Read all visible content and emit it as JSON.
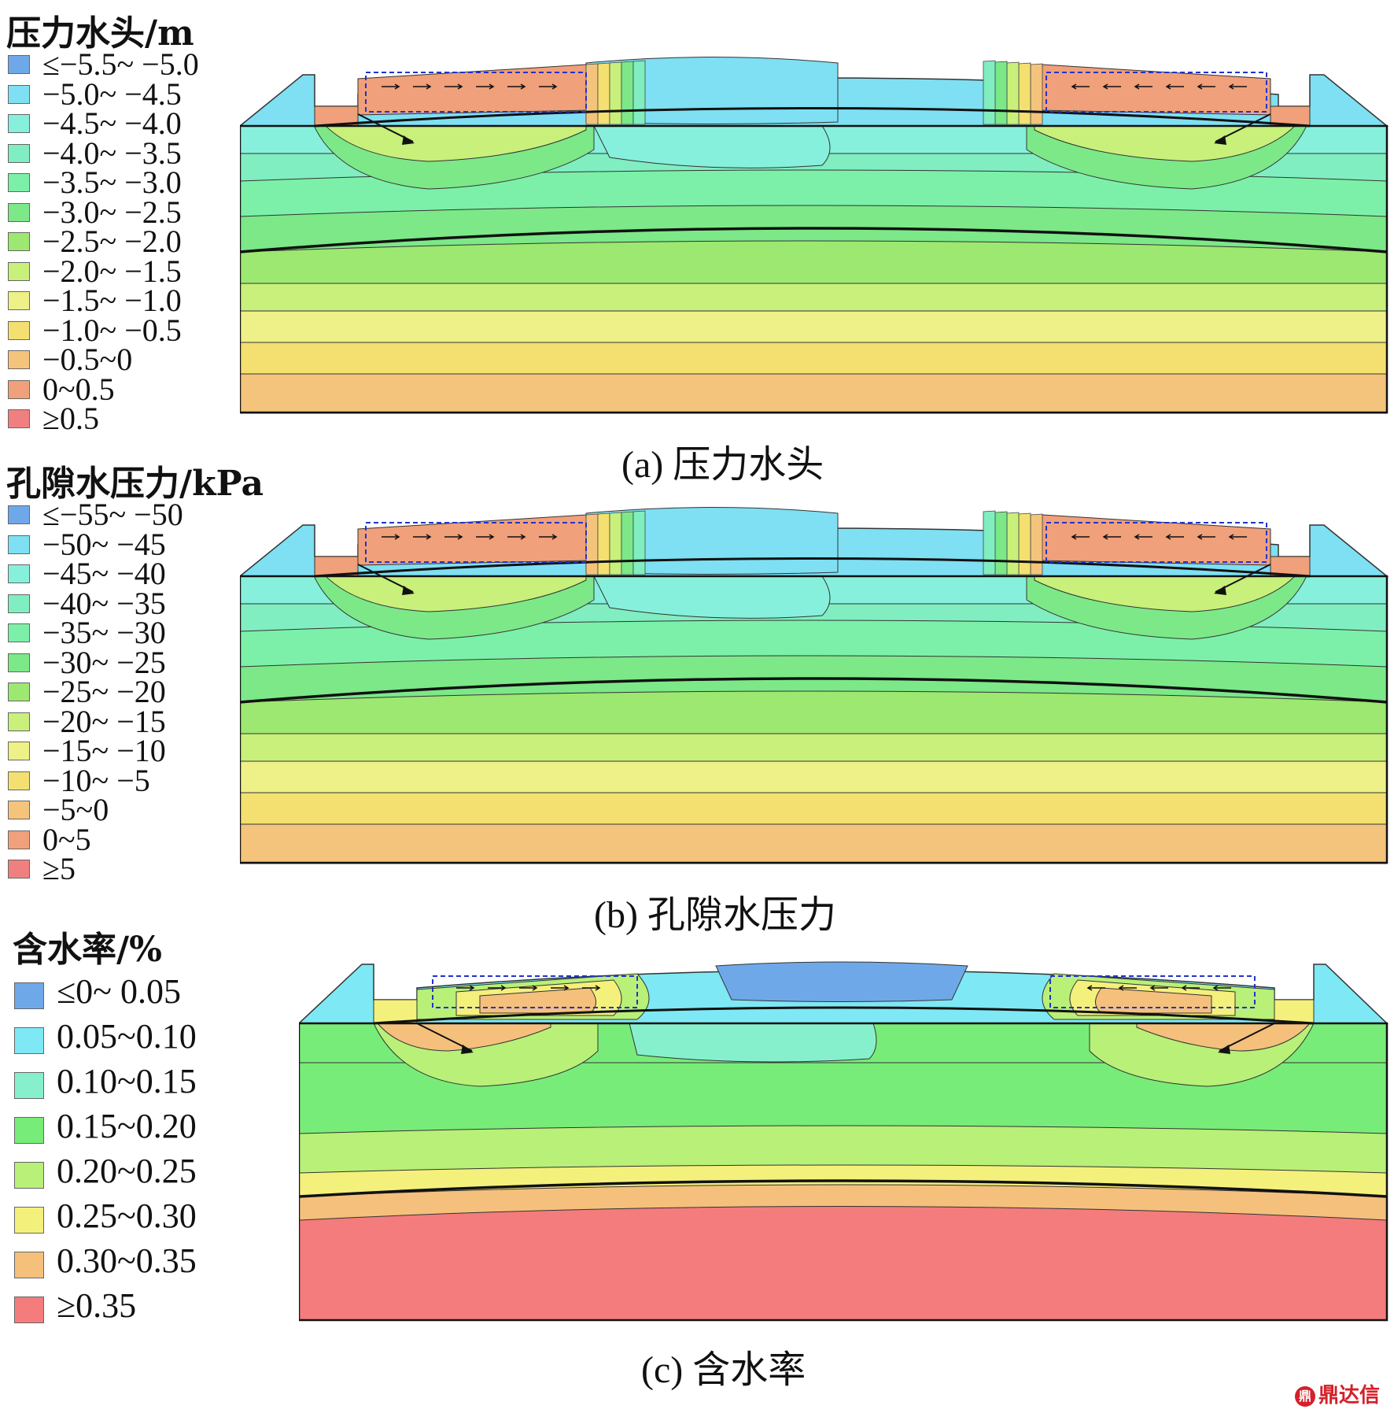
{
  "colors": {
    "c1": "#6fa8e8",
    "c2": "#7ee0f2",
    "c3": "#86f0dc",
    "c4": "#80eec0",
    "c5": "#7cf0a8",
    "c6": "#7ce888",
    "c7": "#9ce870",
    "c8": "#c8f07a",
    "c9": "#eef088",
    "c10": "#f4e070",
    "c11": "#f4c47c",
    "c12": "#f0a07a",
    "c13": "#f08080",
    "mc1": "#6fa8e8",
    "mc2": "#7ee8f4",
    "mc3": "#86f0cc",
    "mc4": "#78ec78",
    "mc5": "#b8f078",
    "mc6": "#f4f07c",
    "mc7": "#f4c07c",
    "mc8": "#f47c7c",
    "outline": "#1a1a1a",
    "dashed": "#2233cc"
  },
  "panel_a": {
    "legend_title": "压力水头/m",
    "legend": [
      "≤−5.5~ −5.0",
      "−5.0~ −4.5",
      "−4.5~ −4.0",
      "−4.0~ −3.5",
      "−3.5~ −3.0",
      "−3.0~ −2.5",
      "−2.5~ −2.0",
      "−2.0~ −1.5",
      "−1.5~ −1.0",
      "−1.0~ −0.5",
      "−0.5~0",
      "0~0.5",
      "≥0.5"
    ],
    "caption": "(a) 压力水头"
  },
  "panel_b": {
    "legend_title": "孔隙水压力/kPa",
    "legend": [
      "≤−55~ −50",
      "−50~ −45",
      "−45~ −40",
      "−40~ −35",
      "−35~ −30",
      "−30~ −25",
      "−25~ −20",
      "−20~ −15",
      "−15~ −10",
      "−10~ −5",
      "−5~0",
      "0~5",
      "≥5"
    ],
    "caption": "(b) 孔隙水压力"
  },
  "panel_c": {
    "legend_title": "含水率/%",
    "legend": [
      "≤0~ 0.05",
      "0.05~0.10",
      "0.10~0.15",
      "0.15~0.20",
      "0.20~0.25",
      "0.25~0.30",
      "0.30~0.35",
      "≥0.35"
    ],
    "caption": "(c) 含水率"
  },
  "watermark": "鼎达信"
}
